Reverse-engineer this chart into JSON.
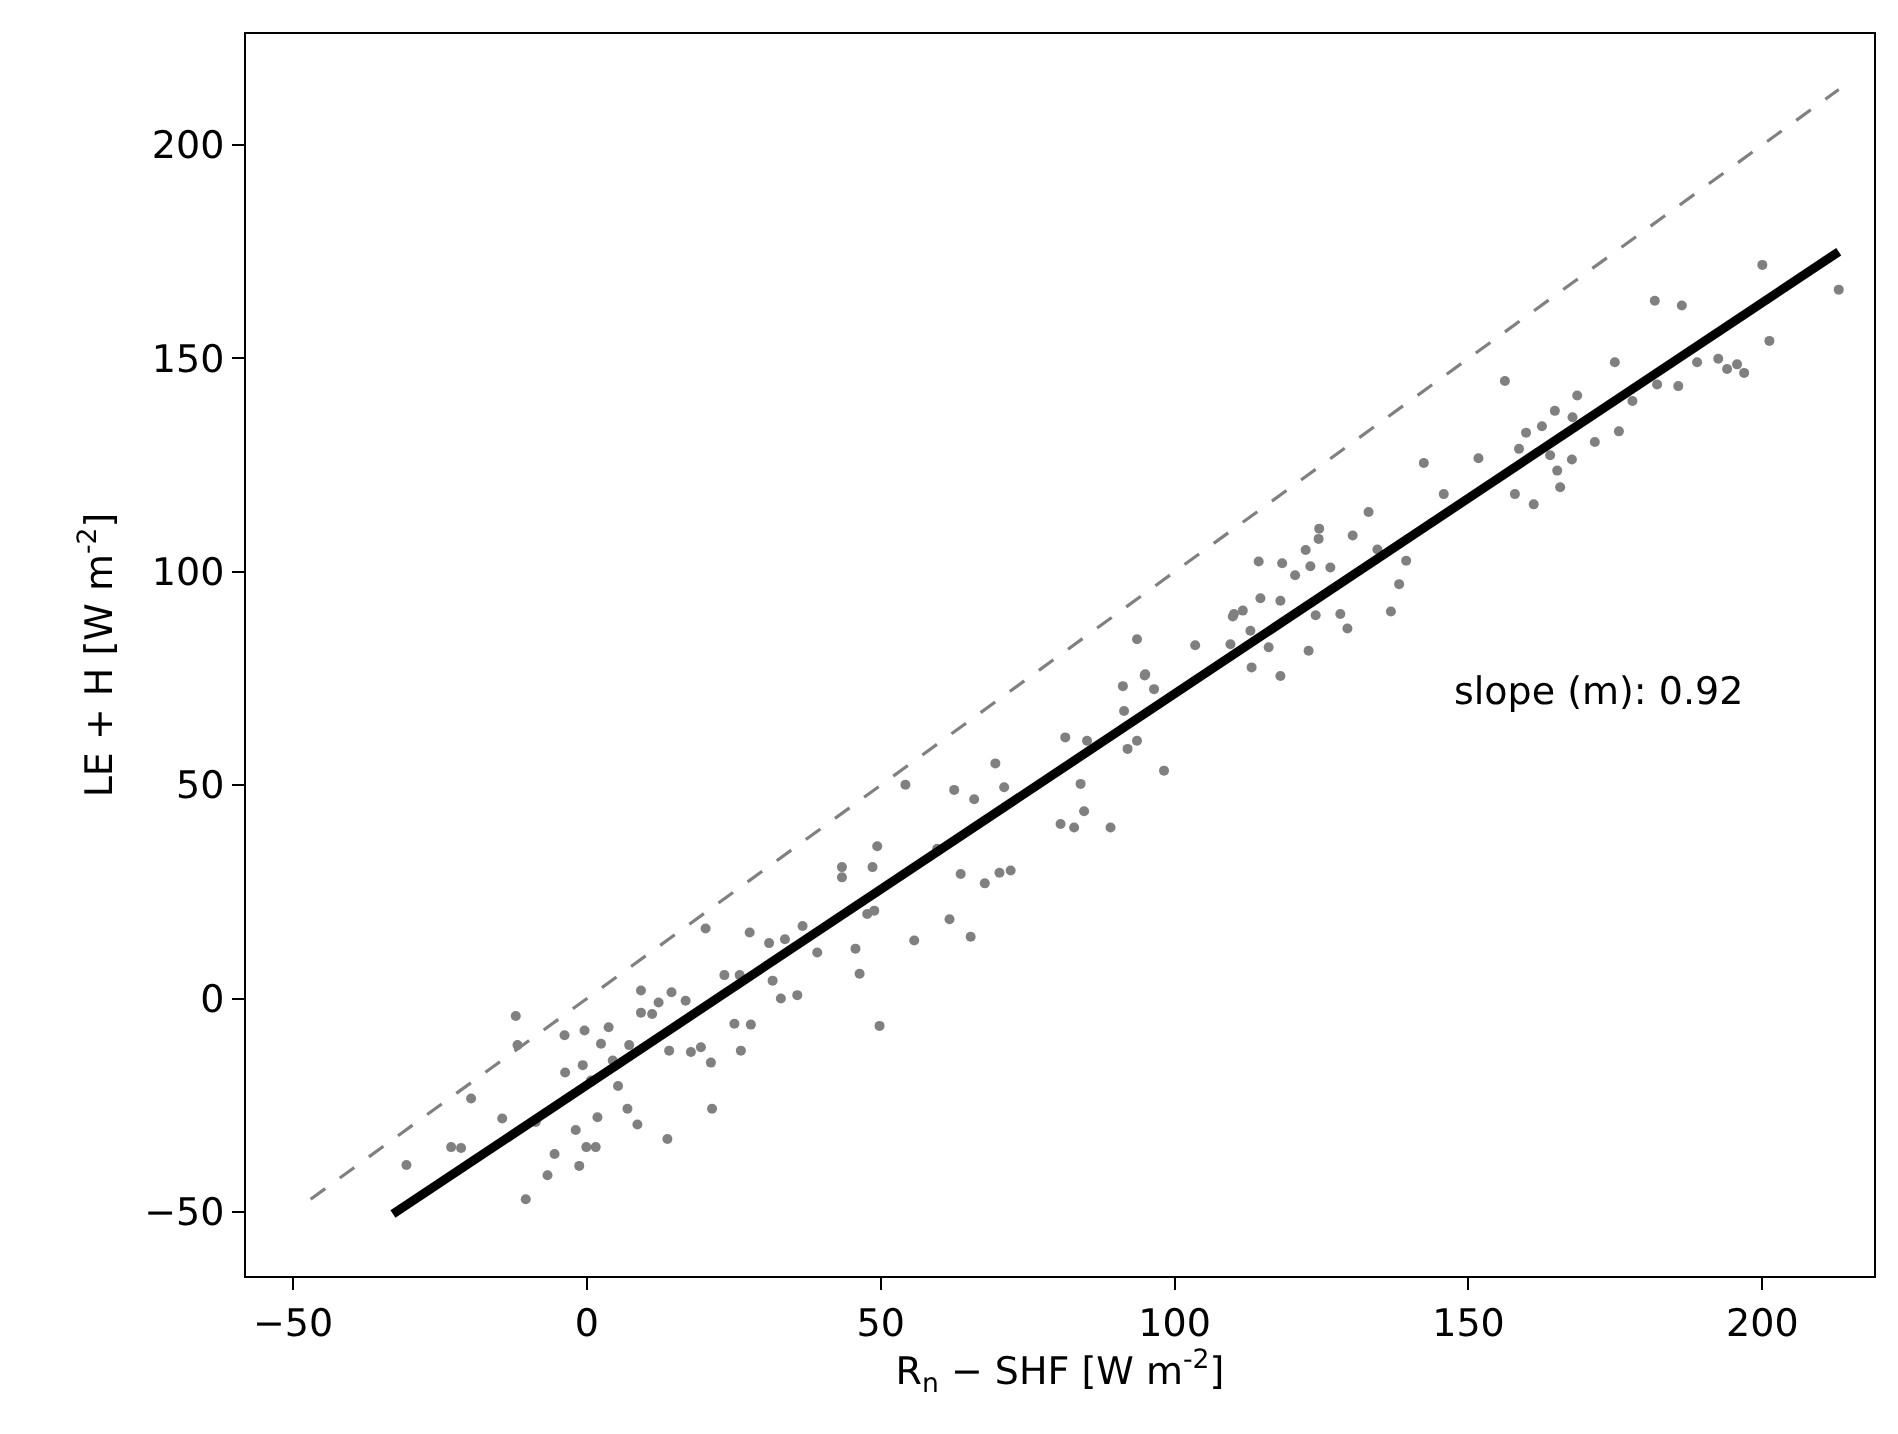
{
  "chart_data": {
    "type": "scatter",
    "xlabel": "R$_{n}$ − SHF [W m$^{-2}$]",
    "ylabel": "LE + H [W m$^{-2}$]",
    "annotations": [
      "slope (m): 0.92"
    ],
    "xlim": [
      -58,
      219
    ],
    "ylim": [
      -65,
      226
    ],
    "xticks": [
      {
        "value": -50,
        "label": "−50"
      },
      0,
      50,
      100,
      150,
      200
    ],
    "yticks": [
      {
        "value": -50,
        "label": "−50"
      },
      0,
      50,
      100,
      150,
      200
    ],
    "series": [
      {
        "marker": "circle",
        "color": "#808080",
        "x": [
          -30.7,
          -23.1,
          -21.4,
          -19.7,
          -14.4,
          -12.1,
          -11.8,
          -10.4,
          -8.7,
          -6.7,
          -5.5,
          -3.8,
          -3.7,
          -1.9,
          -1.3,
          -0.4,
          -0.7,
          0.7,
          -0.1,
          1.5,
          1.8,
          2.4,
          3.7,
          4.4,
          5.3,
          6.9,
          7.2,
          8.6,
          9.2,
          9.2,
          11.1,
          12.2,
          13.7,
          14.0,
          14.4,
          16.8,
          17.7,
          19.4,
          20.2,
          21.1,
          21.3,
          23.4,
          25.1,
          26.0,
          26.2,
          27.7,
          27.9,
          31.0,
          31.6,
          33.0,
          33.7,
          35.8,
          36.7,
          39.2,
          43.4,
          43.4,
          45.7,
          46.4,
          48.6,
          49.4,
          49.8,
          47.7,
          48.9,
          55.7,
          54.2,
          59.6,
          61.7,
          62.5,
          63.6,
          65.3,
          65.9,
          67.7,
          69.5,
          70.2,
          71.0,
          72.1,
          80.6,
          81.4,
          82.9,
          84.0,
          84.6,
          85.1,
          89.1,
          91.2,
          91.4,
          92.0,
          93.6,
          93.6,
          95.0,
          96.5,
          98.2,
          103.5,
          109.5,
          110.1,
          142.4,
          151.7,
          145.8,
          133.0,
          130.3,
          124.6,
          124.5,
          122.3,
          118.3,
          114.3,
          120.5,
          123.1,
          126.5,
          114.6,
          118.0,
          109.9,
          111.6,
          112.9,
          116.0,
          118.0,
          122.8,
          124.0,
          128.2,
          129.4,
          136.8,
          138.2,
          139.4,
          134.5,
          113.1,
          94.9,
          156.2,
          157.9,
          158.6,
          159.8,
          161.1,
          162.5,
          163.9,
          164.7,
          165.1,
          165.6,
          167.6,
          167.7,
          168.5,
          171.5,
          174.9,
          175.6,
          177.9,
          181.7,
          182.1,
          185.7,
          186.3,
          188.9,
          192.5,
          194.0,
          195.7,
          196.9,
          200.0,
          201.2,
          213.0
        ],
        "values": [
          -39.0,
          -34.8,
          -35.0,
          -23.4,
          -28.1,
          -4.1,
          -10.9,
          -47.0,
          -28.9,
          -41.4,
          -36.4,
          -8.6,
          -17.3,
          -30.8,
          -39.2,
          -7.5,
          -15.6,
          -19.2,
          -34.8,
          -34.8,
          -27.8,
          -10.6,
          -6.7,
          -14.5,
          -20.5,
          -25.8,
          -10.9,
          -29.5,
          1.9,
          -3.3,
          -3.6,
          -0.9,
          -32.9,
          -12.2,
          1.5,
          -0.5,
          -12.5,
          -11.4,
          16.4,
          -15.0,
          -25.8,
          5.5,
          -5.9,
          5.5,
          -12.2,
          15.5,
          -6.1,
          13.0,
          4.2,
          0.0,
          13.9,
          0.8,
          17.0,
          10.8,
          30.8,
          28.4,
          11.7,
          5.8,
          30.8,
          35.7,
          -6.4,
          19.8,
          20.6,
          13.6,
          50.1,
          35.1,
          18.6,
          48.9,
          29.2,
          14.5,
          46.7,
          27.0,
          55.1,
          29.5,
          49.5,
          30.0,
          40.9,
          61.2,
          40.1,
          50.3,
          43.9,
          60.4,
          40.1,
          73.2,
          67.4,
          58.5,
          84.2,
          60.4,
          76.0,
          72.5,
          53.4,
          82.8,
          83.0,
          90.1,
          125.5,
          126.6,
          118.2,
          114.0,
          108.5,
          110.1,
          107.7,
          105.1,
          102.0,
          102.4,
          99.2,
          101.3,
          101.0,
          93.8,
          93.2,
          89.5,
          90.9,
          86.2,
          82.3,
          75.6,
          81.5,
          89.8,
          90.1,
          86.7,
          90.7,
          97.1,
          102.6,
          105.2,
          77.6,
          75.7,
          144.7,
          118.2,
          128.8,
          132.6,
          115.8,
          134.1,
          127.3,
          137.7,
          123.7,
          119.8,
          126.3,
          136.2,
          141.3,
          130.4,
          149.1,
          132.9,
          140.0,
          163.5,
          143.9,
          143.5,
          162.4,
          149.1,
          149.9,
          147.5,
          148.6,
          146.6,
          171.9,
          154.1,
          166.1
        ]
      },
      {
        "type": "line",
        "line_style": "dashed",
        "color": "#808080",
        "x": [
          -47,
          213
        ],
        "values": [
          -47,
          213
        ]
      },
      {
        "type": "line",
        "line_style": "solid",
        "color": "#000000",
        "x": [
          -33,
          213
        ],
        "values": [
          -50.5,
          175
        ]
      }
    ]
  }
}
